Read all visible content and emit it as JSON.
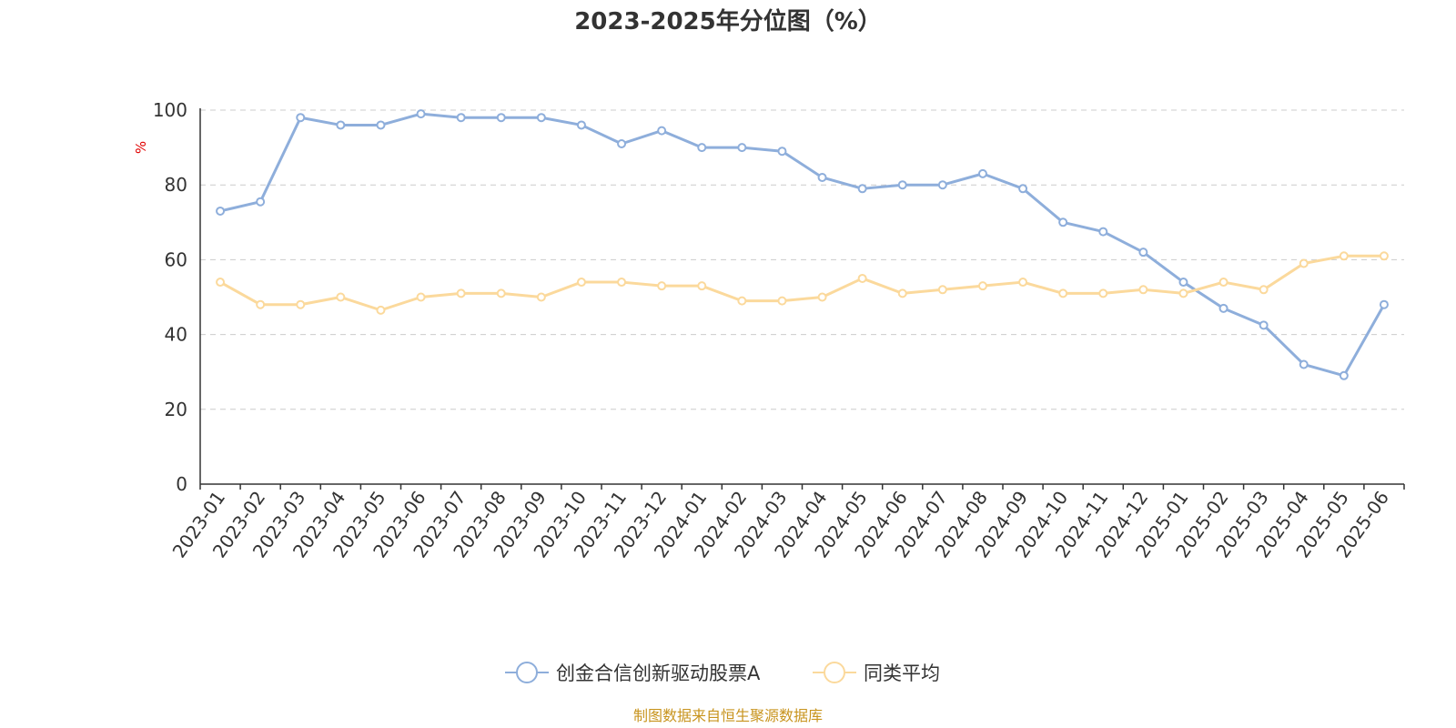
{
  "chart_data": {
    "type": "line",
    "title": "2023-2025年分位图（%）",
    "ylabel": "%",
    "ylim": [
      0,
      100
    ],
    "yticks": [
      0,
      20,
      40,
      60,
      80,
      100
    ],
    "grid": true,
    "legend_placement": "bottom-center",
    "categories": [
      "2023-01",
      "2023-02",
      "2023-03",
      "2023-04",
      "2023-05",
      "2023-06",
      "2023-07",
      "2023-08",
      "2023-09",
      "2023-10",
      "2023-11",
      "2023-12",
      "2024-01",
      "2024-02",
      "2024-03",
      "2024-04",
      "2024-05",
      "2024-06",
      "2024-07",
      "2024-08",
      "2024-09",
      "2024-10",
      "2024-11",
      "2024-12",
      "2025-01",
      "2025-02",
      "2025-03",
      "2025-04",
      "2025-05",
      "2025-06"
    ],
    "series": [
      {
        "name": "创金合信创新驱动股票A",
        "color": "#8eaedb",
        "values": [
          73,
          75.5,
          98,
          96,
          96,
          99,
          98,
          98,
          98,
          96,
          91,
          94.5,
          90,
          90,
          89,
          82,
          79,
          80,
          80,
          83,
          79,
          70,
          67.5,
          62,
          54,
          47,
          42.5,
          32,
          29,
          48
        ]
      },
      {
        "name": "同类平均",
        "color": "#fbd99c",
        "values": [
          54,
          48,
          48,
          50,
          46.5,
          50,
          51,
          51,
          50,
          54,
          54,
          53,
          53,
          49,
          49,
          50,
          55,
          51,
          52,
          53,
          54,
          51,
          51,
          52,
          51,
          54,
          52,
          59,
          61,
          61
        ]
      }
    ]
  },
  "footer": {
    "source": "制图数据来自恒生聚源数据库"
  }
}
